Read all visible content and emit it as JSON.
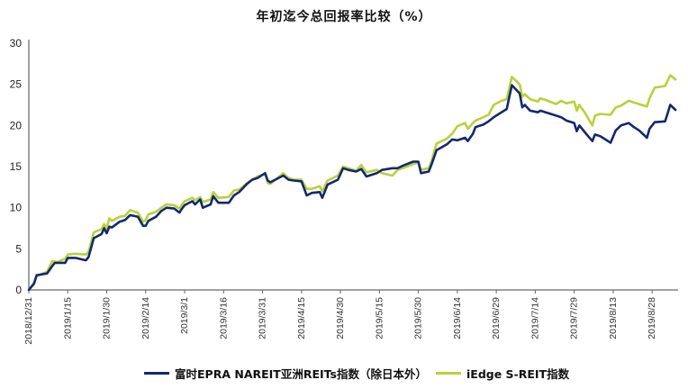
{
  "chart_data": {
    "type": "line",
    "title": "年初迄今总回报率比较（%）",
    "xlabel": "",
    "ylabel": "",
    "ylim": [
      0,
      30
    ],
    "yticks": [
      0,
      5,
      10,
      15,
      20,
      25,
      30
    ],
    "x_start": "2018/12/31",
    "x_end": "2019/9/7",
    "xticks": [
      "2018/12/31",
      "2019/1/15",
      "2019/1/30",
      "2019/2/14",
      "2019/3/1",
      "2019/3/16",
      "2019/3/31",
      "2019/4/15",
      "2019/4/30",
      "2019/5/15",
      "2019/5/30",
      "2019/6/14",
      "2019/6/29",
      "2019/7/14",
      "2019/7/29",
      "2019/8/13",
      "2019/8/28"
    ],
    "grid": false,
    "legend_position": "bottom",
    "series": [
      {
        "name": "富时EPRA NAREIT亚洲REITs指数（除日本外）",
        "color": "#14286e",
        "points": [
          [
            "2018/12/31",
            0.0
          ],
          [
            "2019/1/2",
            0.8
          ],
          [
            "2019/1/3",
            1.8
          ],
          [
            "2019/1/7",
            2.0
          ],
          [
            "2019/1/9",
            2.9
          ],
          [
            "2019/1/10",
            3.3
          ],
          [
            "2019/1/14",
            3.3
          ],
          [
            "2019/1/15",
            3.9
          ],
          [
            "2019/1/18",
            3.9
          ],
          [
            "2019/1/22",
            3.6
          ],
          [
            "2019/1/23",
            4.0
          ],
          [
            "2019/1/25",
            6.3
          ],
          [
            "2019/1/28",
            6.8
          ],
          [
            "2019/1/29",
            7.5
          ],
          [
            "2019/1/30",
            6.9
          ],
          [
            "2019/1/31",
            7.7
          ],
          [
            "2019/2/1",
            7.6
          ],
          [
            "2019/2/4",
            8.3
          ],
          [
            "2019/2/6",
            8.5
          ],
          [
            "2019/2/8",
            9.1
          ],
          [
            "2019/2/11",
            8.9
          ],
          [
            "2019/2/13",
            7.8
          ],
          [
            "2019/2/14",
            7.8
          ],
          [
            "2019/2/15",
            8.4
          ],
          [
            "2019/2/18",
            8.9
          ],
          [
            "2019/2/20",
            9.6
          ],
          [
            "2019/2/22",
            10.0
          ],
          [
            "2019/2/25",
            9.9
          ],
          [
            "2019/2/27",
            9.4
          ],
          [
            "2019/2/28",
            9.9
          ],
          [
            "2019/3/1",
            10.3
          ],
          [
            "2019/3/4",
            10.8
          ],
          [
            "2019/3/5",
            10.4
          ],
          [
            "2019/3/7",
            11.0
          ],
          [
            "2019/3/8",
            10.0
          ],
          [
            "2019/3/11",
            10.4
          ],
          [
            "2019/3/12",
            11.4
          ],
          [
            "2019/3/14",
            10.6
          ],
          [
            "2019/3/18",
            10.6
          ],
          [
            "2019/3/20",
            11.5
          ],
          [
            "2019/3/22",
            11.9
          ],
          [
            "2019/3/25",
            12.9
          ],
          [
            "2019/3/27",
            13.4
          ],
          [
            "2019/3/29",
            13.6
          ],
          [
            "2019/4/1",
            14.2
          ],
          [
            "2019/4/2",
            13.3
          ],
          [
            "2019/4/3",
            13.1
          ],
          [
            "2019/4/8",
            13.9
          ],
          [
            "2019/4/10",
            13.4
          ],
          [
            "2019/4/12",
            13.3
          ],
          [
            "2019/4/15",
            13.2
          ],
          [
            "2019/4/17",
            11.5
          ],
          [
            "2019/4/19",
            11.8
          ],
          [
            "2019/4/22",
            11.9
          ],
          [
            "2019/4/23",
            11.2
          ],
          [
            "2019/4/25",
            12.8
          ],
          [
            "2019/4/29",
            13.4
          ],
          [
            "2019/5/1",
            14.8
          ],
          [
            "2019/5/3",
            14.6
          ],
          [
            "2019/5/6",
            14.4
          ],
          [
            "2019/5/8",
            14.7
          ],
          [
            "2019/5/10",
            13.8
          ],
          [
            "2019/5/14",
            14.2
          ],
          [
            "2019/5/16",
            14.6
          ],
          [
            "2019/5/20",
            14.8
          ],
          [
            "2019/5/22",
            14.8
          ],
          [
            "2019/5/24",
            15.1
          ],
          [
            "2019/5/28",
            15.6
          ],
          [
            "2019/5/30",
            15.6
          ],
          [
            "2019/5/31",
            14.2
          ],
          [
            "2019/6/3",
            14.4
          ],
          [
            "2019/6/4",
            15.2
          ],
          [
            "2019/6/6",
            17.0
          ],
          [
            "2019/6/10",
            17.7
          ],
          [
            "2019/6/12",
            18.3
          ],
          [
            "2019/6/14",
            18.2
          ],
          [
            "2019/6/17",
            18.5
          ],
          [
            "2019/6/18",
            18.1
          ],
          [
            "2019/6/20",
            19.0
          ],
          [
            "2019/6/21",
            19.8
          ],
          [
            "2019/6/24",
            20.1
          ],
          [
            "2019/6/26",
            20.5
          ],
          [
            "2019/6/28",
            21.0
          ],
          [
            "2019/7/1",
            21.6
          ],
          [
            "2019/7/3",
            22.0
          ],
          [
            "2019/7/5",
            24.9
          ],
          [
            "2019/7/8",
            23.9
          ],
          [
            "2019/7/9",
            22.2
          ],
          [
            "2019/7/10",
            22.5
          ],
          [
            "2019/7/12",
            21.8
          ],
          [
            "2019/7/15",
            21.6
          ],
          [
            "2019/7/16",
            21.8
          ],
          [
            "2019/7/18",
            21.6
          ],
          [
            "2019/7/22",
            21.2
          ],
          [
            "2019/7/24",
            21.0
          ],
          [
            "2019/7/26",
            20.6
          ],
          [
            "2019/7/29",
            20.3
          ],
          [
            "2019/7/30",
            19.3
          ],
          [
            "2019/7/31",
            20.0
          ],
          [
            "2019/8/2",
            19.2
          ],
          [
            "2019/8/5",
            18.1
          ],
          [
            "2019/8/6",
            18.9
          ],
          [
            "2019/8/8",
            18.7
          ],
          [
            "2019/8/12",
            17.9
          ],
          [
            "2019/8/14",
            19.4
          ],
          [
            "2019/8/16",
            20.0
          ],
          [
            "2019/8/19",
            20.3
          ],
          [
            "2019/8/21",
            19.8
          ],
          [
            "2019/8/23",
            19.4
          ],
          [
            "2019/8/26",
            18.5
          ],
          [
            "2019/8/27",
            19.6
          ],
          [
            "2019/8/29",
            20.4
          ],
          [
            "2019/9/2",
            20.5
          ],
          [
            "2019/9/4",
            22.5
          ],
          [
            "2019/9/6",
            21.9
          ]
        ]
      },
      {
        "name": "iEdge S-REIT指数",
        "color": "#b9d13b",
        "points": [
          [
            "2018/12/31",
            0.0
          ],
          [
            "2019/1/2",
            0.7
          ],
          [
            "2019/1/3",
            1.7
          ],
          [
            "2019/1/7",
            2.2
          ],
          [
            "2019/1/9",
            3.5
          ],
          [
            "2019/1/11",
            3.4
          ],
          [
            "2019/1/14",
            3.8
          ],
          [
            "2019/1/15",
            4.3
          ],
          [
            "2019/1/18",
            4.4
          ],
          [
            "2019/1/22",
            4.3
          ],
          [
            "2019/1/23",
            4.6
          ],
          [
            "2019/1/25",
            7.0
          ],
          [
            "2019/1/28",
            7.4
          ],
          [
            "2019/1/29",
            8.0
          ],
          [
            "2019/1/30",
            7.5
          ],
          [
            "2019/1/31",
            8.7
          ],
          [
            "2019/2/1",
            8.4
          ],
          [
            "2019/2/4",
            8.9
          ],
          [
            "2019/2/6",
            9.0
          ],
          [
            "2019/2/8",
            9.7
          ],
          [
            "2019/2/11",
            9.4
          ],
          [
            "2019/2/13",
            8.3
          ],
          [
            "2019/2/14",
            8.5
          ],
          [
            "2019/2/15",
            9.2
          ],
          [
            "2019/2/18",
            9.5
          ],
          [
            "2019/2/20",
            10.0
          ],
          [
            "2019/2/22",
            10.4
          ],
          [
            "2019/2/25",
            10.3
          ],
          [
            "2019/2/27",
            9.9
          ],
          [
            "2019/2/28",
            10.4
          ],
          [
            "2019/3/1",
            10.8
          ],
          [
            "2019/3/4",
            11.2
          ],
          [
            "2019/3/5",
            10.9
          ],
          [
            "2019/3/7",
            11.3
          ],
          [
            "2019/3/8",
            10.7
          ],
          [
            "2019/3/11",
            11.0
          ],
          [
            "2019/3/12",
            11.9
          ],
          [
            "2019/3/14",
            11.2
          ],
          [
            "2019/3/18",
            11.3
          ],
          [
            "2019/3/20",
            12.1
          ],
          [
            "2019/3/22",
            12.2
          ],
          [
            "2019/3/25",
            13.0
          ],
          [
            "2019/3/27",
            13.4
          ],
          [
            "2019/3/29",
            13.8
          ],
          [
            "2019/4/1",
            14.1
          ],
          [
            "2019/4/2",
            13.0
          ],
          [
            "2019/4/3",
            12.9
          ],
          [
            "2019/4/8",
            14.2
          ],
          [
            "2019/4/10",
            13.6
          ],
          [
            "2019/4/12",
            13.4
          ],
          [
            "2019/4/15",
            13.4
          ],
          [
            "2019/4/17",
            12.3
          ],
          [
            "2019/4/19",
            12.3
          ],
          [
            "2019/4/22",
            12.6
          ],
          [
            "2019/4/23",
            12.0
          ],
          [
            "2019/4/25",
            13.3
          ],
          [
            "2019/4/29",
            13.9
          ],
          [
            "2019/5/1",
            15.0
          ],
          [
            "2019/5/3",
            14.8
          ],
          [
            "2019/5/6",
            14.5
          ],
          [
            "2019/5/8",
            15.2
          ],
          [
            "2019/5/10",
            14.3
          ],
          [
            "2019/5/14",
            14.6
          ],
          [
            "2019/5/16",
            14.2
          ],
          [
            "2019/5/20",
            13.9
          ],
          [
            "2019/5/22",
            14.6
          ],
          [
            "2019/5/24",
            14.8
          ],
          [
            "2019/5/28",
            15.3
          ],
          [
            "2019/5/30",
            15.5
          ],
          [
            "2019/5/31",
            14.6
          ],
          [
            "2019/6/3",
            14.8
          ],
          [
            "2019/6/4",
            15.6
          ],
          [
            "2019/6/6",
            17.8
          ],
          [
            "2019/6/10",
            18.4
          ],
          [
            "2019/6/12",
            19.0
          ],
          [
            "2019/6/14",
            19.9
          ],
          [
            "2019/6/17",
            20.3
          ],
          [
            "2019/6/18",
            19.6
          ],
          [
            "2019/6/20",
            20.3
          ],
          [
            "2019/6/21",
            20.6
          ],
          [
            "2019/6/24",
            21.0
          ],
          [
            "2019/6/26",
            21.3
          ],
          [
            "2019/6/28",
            22.5
          ],
          [
            "2019/7/1",
            23.0
          ],
          [
            "2019/7/3",
            23.2
          ],
          [
            "2019/7/5",
            25.9
          ],
          [
            "2019/7/8",
            25.0
          ],
          [
            "2019/7/9",
            23.5
          ],
          [
            "2019/7/10",
            23.8
          ],
          [
            "2019/7/12",
            23.2
          ],
          [
            "2019/7/15",
            22.9
          ],
          [
            "2019/7/16",
            23.3
          ],
          [
            "2019/7/18",
            23.1
          ],
          [
            "2019/7/22",
            22.6
          ],
          [
            "2019/7/24",
            23.0
          ],
          [
            "2019/7/26",
            22.7
          ],
          [
            "2019/7/29",
            22.9
          ],
          [
            "2019/7/30",
            21.8
          ],
          [
            "2019/7/31",
            22.5
          ],
          [
            "2019/8/2",
            21.6
          ],
          [
            "2019/8/5",
            20.0
          ],
          [
            "2019/8/6",
            21.2
          ],
          [
            "2019/8/8",
            21.4
          ],
          [
            "2019/8/12",
            21.3
          ],
          [
            "2019/8/14",
            22.2
          ],
          [
            "2019/8/16",
            22.4
          ],
          [
            "2019/8/19",
            23.0
          ],
          [
            "2019/8/21",
            22.8
          ],
          [
            "2019/8/23",
            22.6
          ],
          [
            "2019/8/26",
            22.3
          ],
          [
            "2019/8/27",
            23.3
          ],
          [
            "2019/8/29",
            24.6
          ],
          [
            "2019/9/2",
            24.8
          ],
          [
            "2019/9/4",
            26.1
          ],
          [
            "2019/9/6",
            25.6
          ]
        ]
      }
    ]
  }
}
